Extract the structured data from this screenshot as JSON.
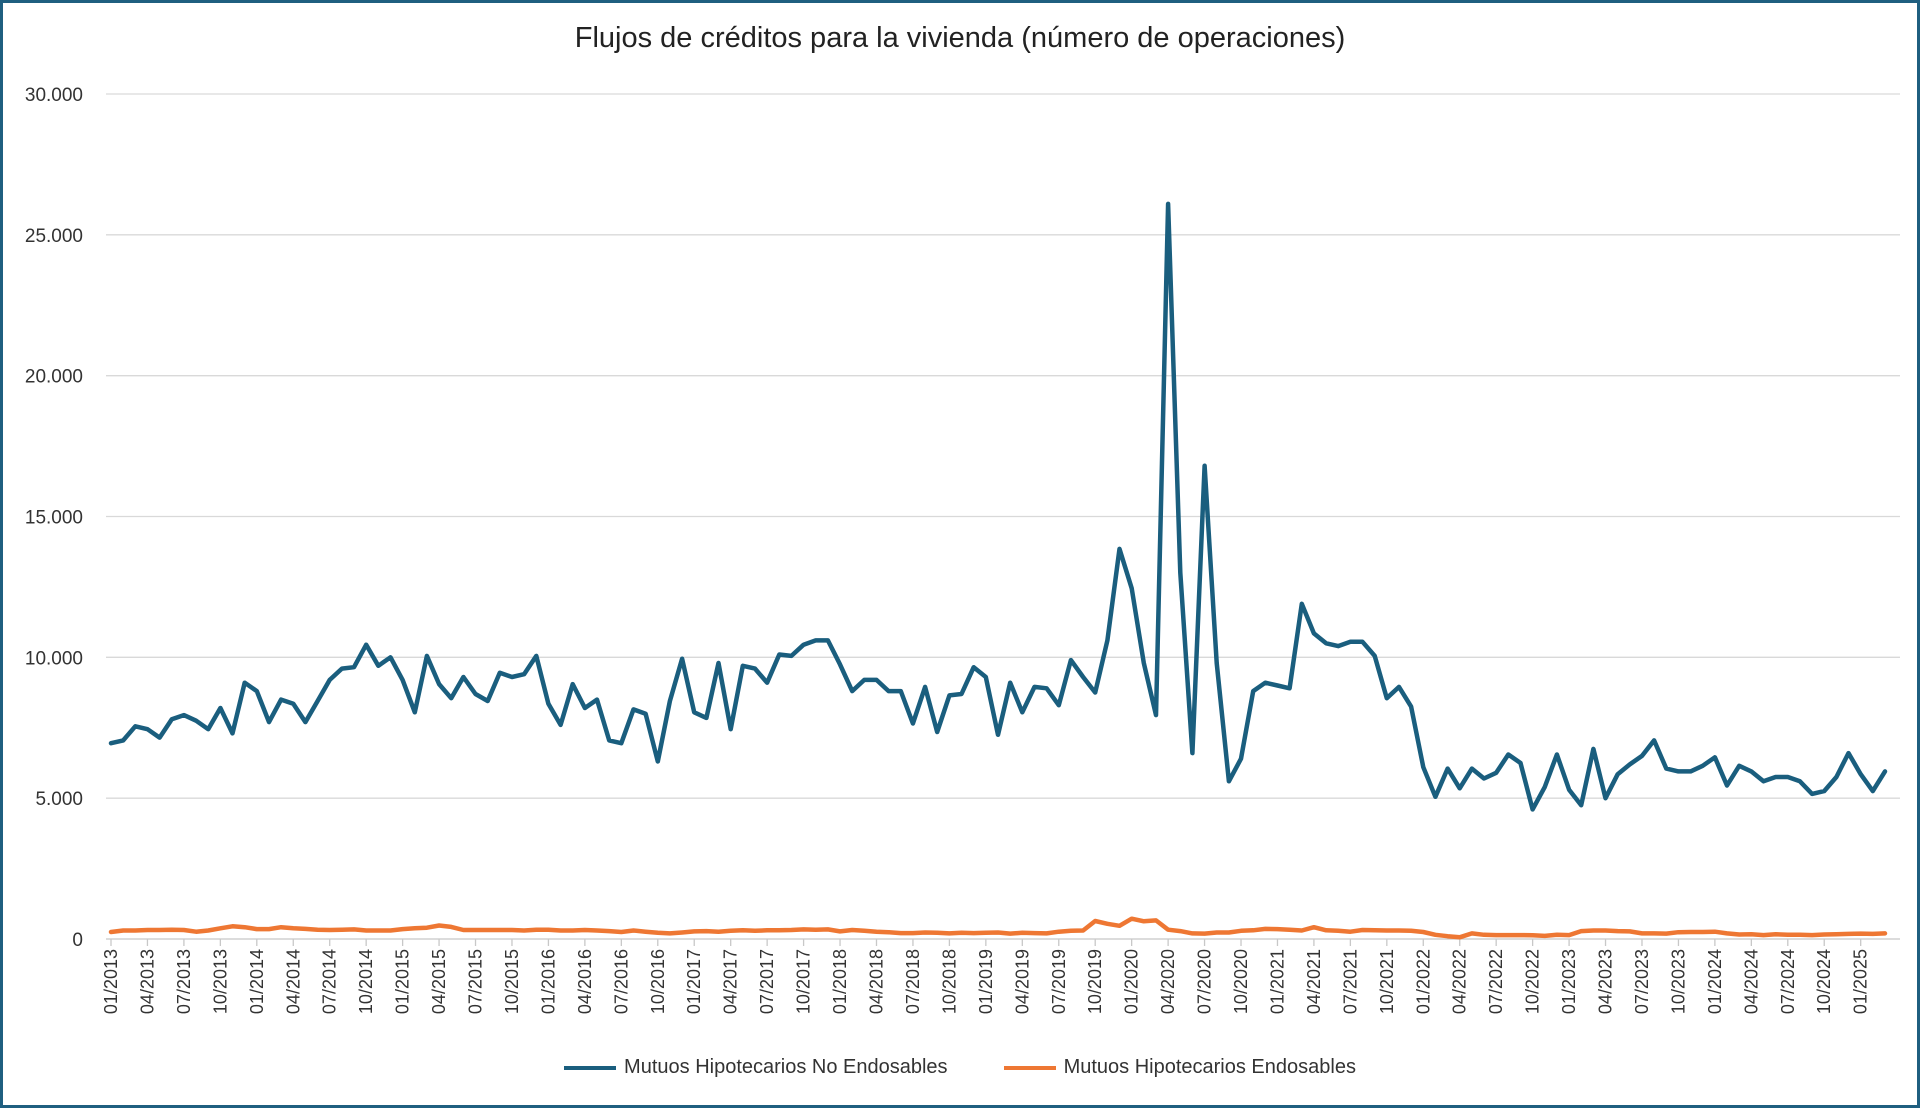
{
  "chart_data": {
    "type": "line",
    "title": "Flujos de créditos para la vivienda (número de operaciones)",
    "xlabel": "",
    "ylabel": "",
    "ylim": [
      0,
      30000
    ],
    "y_ticks": [
      "0",
      "5.000",
      "10.000",
      "15.000",
      "20.000",
      "25.000",
      "30.000"
    ],
    "x_start": "01/2013",
    "x_end": "03/2025",
    "x_frequency": "monthly",
    "x_tick_labels": [
      "01/2013",
      "04/2013",
      "07/2013",
      "10/2013",
      "01/2014",
      "04/2014",
      "07/2014",
      "10/2014",
      "01/2015",
      "04/2015",
      "07/2015",
      "10/2015",
      "01/2016",
      "04/2016",
      "07/2016",
      "10/2016",
      "01/2017",
      "04/2017",
      "07/2017",
      "10/2017",
      "01/2018",
      "04/2018",
      "07/2018",
      "10/2018",
      "01/2019",
      "04/2019",
      "07/2019",
      "10/2019",
      "01/2020",
      "04/2020",
      "07/2020",
      "10/2020",
      "01/2021",
      "04/2021",
      "07/2021",
      "10/2021",
      "01/2022",
      "04/2022",
      "07/2022",
      "10/2022",
      "01/2023",
      "04/2023",
      "07/2023",
      "10/2023",
      "01/2024",
      "04/2024",
      "07/2024",
      "10/2024",
      "01/2025"
    ],
    "grid": true,
    "legend": "bottom",
    "series": [
      {
        "name": "Mutuos Hipotecarios No Endosables",
        "color": "#1a5e7e",
        "values": [
          6950,
          7050,
          7550,
          7450,
          7150,
          7800,
          7950,
          7750,
          7450,
          8200,
          7300,
          9100,
          8800,
          7700,
          8500,
          8350,
          7700,
          8450,
          9200,
          9600,
          9650,
          10450,
          9700,
          10000,
          9200,
          8050,
          10050,
          9050,
          8550,
          9300,
          8700,
          8450,
          9450,
          9300,
          9400,
          10050,
          8350,
          7600,
          9050,
          8200,
          8500,
          7050,
          6950,
          8150,
          8000,
          6300,
          8450,
          9950,
          8050,
          7850,
          9800,
          7450,
          9700,
          9600,
          9100,
          10100,
          10050,
          10450,
          10600,
          10600,
          9750,
          8800,
          9200,
          9200,
          8800,
          8800,
          7650,
          8950,
          7350,
          8650,
          8700,
          9650,
          9300,
          7250,
          9100,
          8050,
          8950,
          8900,
          8300,
          9900,
          9300,
          8750,
          10600,
          13850,
          12450,
          9800,
          7950,
          26100,
          13000,
          6600,
          16800,
          9800,
          5600,
          6400,
          8800,
          9100,
          9000,
          8900,
          11900,
          10850,
          10500,
          10400,
          10550,
          10550,
          10050,
          8550,
          8950,
          8250,
          6100,
          5050,
          6050,
          5350,
          6050,
          5700,
          5900,
          6550,
          6250,
          4600,
          5400,
          6550,
          5300,
          4750,
          6750,
          5000,
          5850,
          6200,
          6500,
          7050,
          6050,
          5950,
          5950,
          6150,
          6450,
          5450,
          6150,
          5950,
          5600,
          5750,
          5750,
          5600,
          5150,
          5250,
          5750,
          6600,
          5850,
          5250,
          5950
        ]
      },
      {
        "name": "Mutuos Hipotecarios Endosables",
        "color": "#ee7733",
        "values": [
          250,
          300,
          300,
          320,
          320,
          330,
          320,
          260,
          300,
          380,
          450,
          420,
          350,
          350,
          420,
          380,
          360,
          330,
          320,
          330,
          340,
          300,
          300,
          300,
          350,
          380,
          400,
          480,
          430,
          320,
          320,
          320,
          320,
          320,
          300,
          330,
          330,
          300,
          300,
          320,
          300,
          280,
          250,
          300,
          260,
          220,
          200,
          230,
          270,
          280,
          260,
          290,
          310,
          290,
          310,
          310,
          320,
          340,
          330,
          340,
          270,
          320,
          290,
          260,
          240,
          210,
          210,
          230,
          220,
          200,
          220,
          210,
          220,
          230,
          190,
          220,
          210,
          200,
          260,
          290,
          300,
          640,
          540,
          470,
          720,
          630,
          660,
          330,
          280,
          200,
          190,
          230,
          230,
          290,
          310,
          360,
          350,
          330,
          300,
          420,
          310,
          290,
          260,
          320,
          310,
          300,
          300,
          290,
          250,
          150,
          100,
          60,
          200,
          150,
          140,
          140,
          140,
          130,
          110,
          150,
          140,
          280,
          300,
          300,
          280,
          270,
          200,
          200,
          190,
          240,
          250,
          250,
          260,
          200,
          160,
          170,
          140,
          170,
          150,
          150,
          140,
          160,
          170,
          180,
          190,
          180,
          200
        ]
      }
    ]
  }
}
